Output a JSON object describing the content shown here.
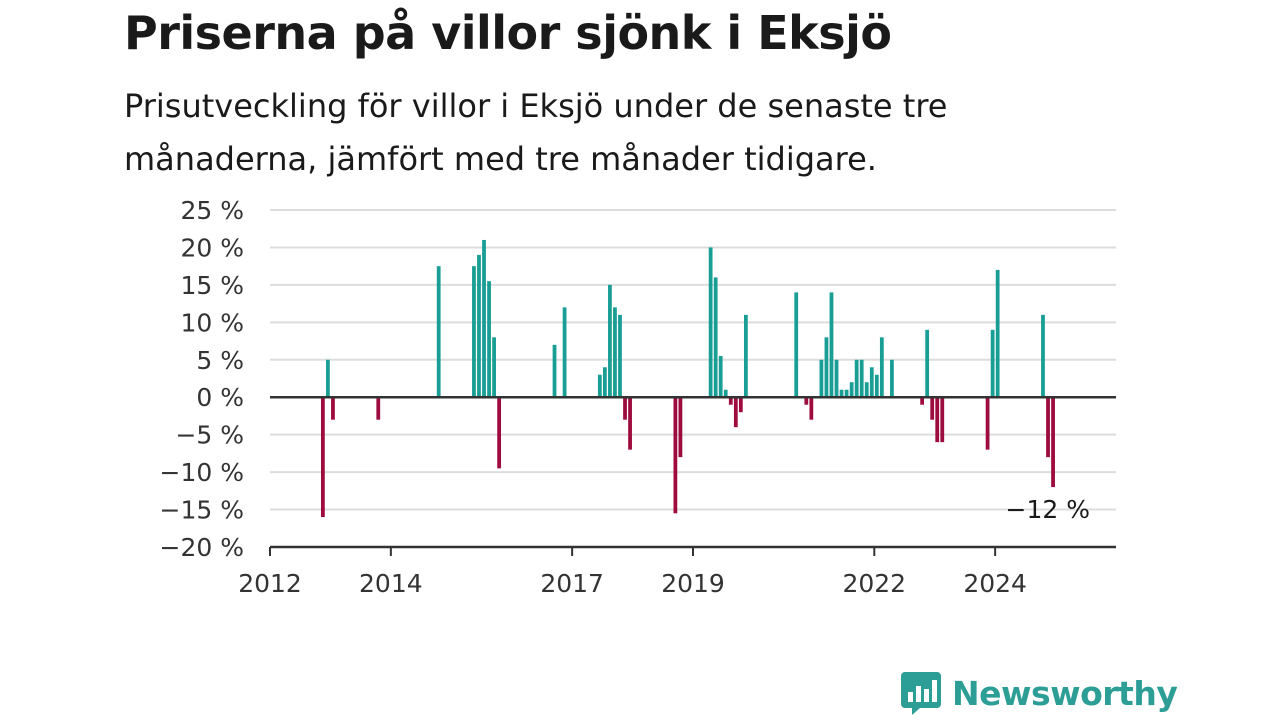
{
  "header": {
    "title": "Priserna på villor sjönk i Eksjö",
    "subtitle": "Prisutveckling för villor i Eksjö under de senaste tre månaderna, jämfört med tre månader tidigare."
  },
  "logo": {
    "text": "Newsworthy",
    "color": "#2d9e96",
    "icon": "bar-chart-speech-icon"
  },
  "colors": {
    "positive": "#199e96",
    "negative": "#9e0b3e",
    "grid": "#dddddd",
    "axis": "#333333"
  },
  "chart_data": {
    "type": "bar",
    "title": "Priserna på villor sjönk i Eksjö",
    "subtitle": "Prisutveckling för villor i Eksjö under de senaste tre månaderna, jämfört med tre månader tidigare.",
    "xlabel": "",
    "ylabel": "",
    "ylim": [
      -20,
      25
    ],
    "yticks": [
      25,
      20,
      15,
      10,
      5,
      0,
      -5,
      -10,
      -15,
      -20
    ],
    "ytick_labels": [
      "25 %",
      "20 %",
      "15 %",
      "10 %",
      "5 %",
      "0 %",
      "−5 %",
      "−10 %",
      "−15 %",
      "−20 %"
    ],
    "xlim": [
      "2012-01",
      "2025-12"
    ],
    "xticks": [
      "2012-01",
      "2014-01",
      "2017-01",
      "2019-01",
      "2022-01",
      "2024-01"
    ],
    "xtick_labels": [
      "2012",
      "2014",
      "2017",
      "2019",
      "2022",
      "2024"
    ],
    "grid": true,
    "annotation": {
      "x": "2024-11",
      "text": "−12 %"
    },
    "series": [
      {
        "x": [
          "2012-11",
          "2012-12",
          "2013-01",
          "2013-10",
          "2014-10",
          "2015-05",
          "2015-06",
          "2015-07",
          "2015-08",
          "2015-09",
          "2015-10",
          "2016-09",
          "2016-11",
          "2017-06",
          "2017-07",
          "2017-08",
          "2017-09",
          "2017-10",
          "2017-11",
          "2017-12",
          "2018-09",
          "2018-10",
          "2019-04",
          "2019-05",
          "2019-06",
          "2019-07",
          "2019-08",
          "2019-09",
          "2019-10",
          "2019-11",
          "2020-09",
          "2020-11",
          "2020-12",
          "2021-02",
          "2021-03",
          "2021-04",
          "2021-05",
          "2021-06",
          "2021-07",
          "2021-08",
          "2021-09",
          "2021-10",
          "2021-11",
          "2021-12",
          "2022-01",
          "2022-02",
          "2022-04",
          "2022-10",
          "2022-11",
          "2022-12",
          "2023-01",
          "2023-02",
          "2023-11",
          "2023-12",
          "2024-01",
          "2024-10",
          "2024-11",
          "2024-12"
        ],
        "values": [
          -16,
          5,
          -3,
          -3,
          17.5,
          17.5,
          19,
          21,
          15.5,
          8,
          -9.5,
          7,
          12,
          3,
          4,
          15,
          12,
          11,
          -3,
          -7,
          -15.5,
          -8,
          20,
          16,
          5.5,
          1,
          -1,
          -4,
          -2,
          11,
          14,
          -1,
          -3,
          5,
          8,
          14,
          5,
          1,
          1,
          2,
          5,
          5,
          2,
          4,
          3,
          8,
          5,
          -1,
          9,
          -3,
          -6,
          -6,
          -7,
          9,
          17,
          11,
          -8,
          -12
        ]
      }
    ]
  }
}
